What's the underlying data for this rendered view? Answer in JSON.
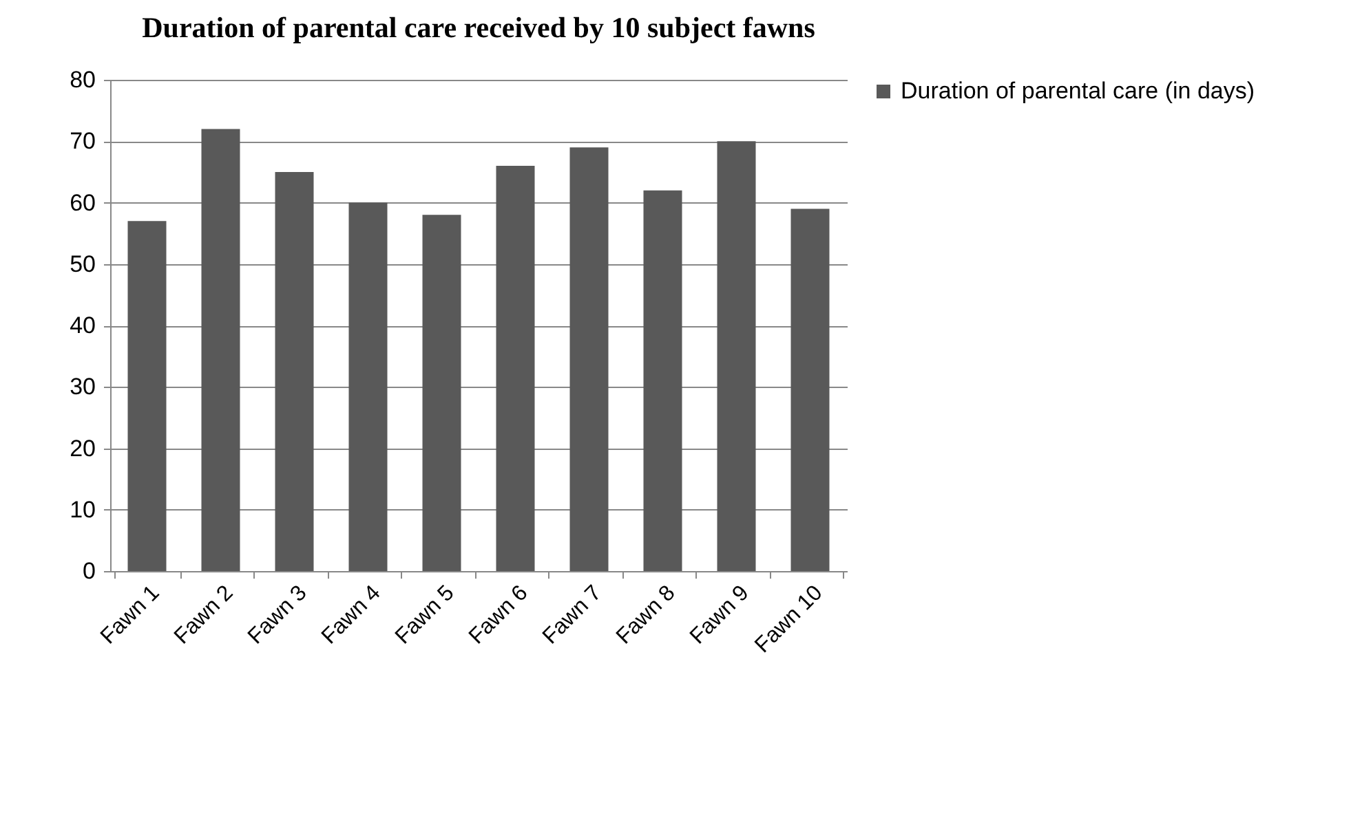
{
  "chart_data": {
    "type": "bar",
    "title": "Duration of parental care received by 10 subject fawns",
    "categories": [
      "Fawn 1",
      "Fawn 2",
      "Fawn 3",
      "Fawn 4",
      "Fawn 5",
      "Fawn 6",
      "Fawn 7",
      "Fawn 8",
      "Fawn 9",
      "Fawn 10"
    ],
    "series": [
      {
        "name": "Duration of parental care (in days)",
        "color": "#595959",
        "values": [
          57,
          72,
          65,
          60,
          58,
          66,
          69,
          62,
          70,
          59
        ]
      }
    ],
    "ylim": [
      0,
      80
    ],
    "yticks": [
      0,
      10,
      20,
      30,
      40,
      50,
      60,
      70,
      80
    ],
    "grid": "y",
    "legend": "right"
  }
}
